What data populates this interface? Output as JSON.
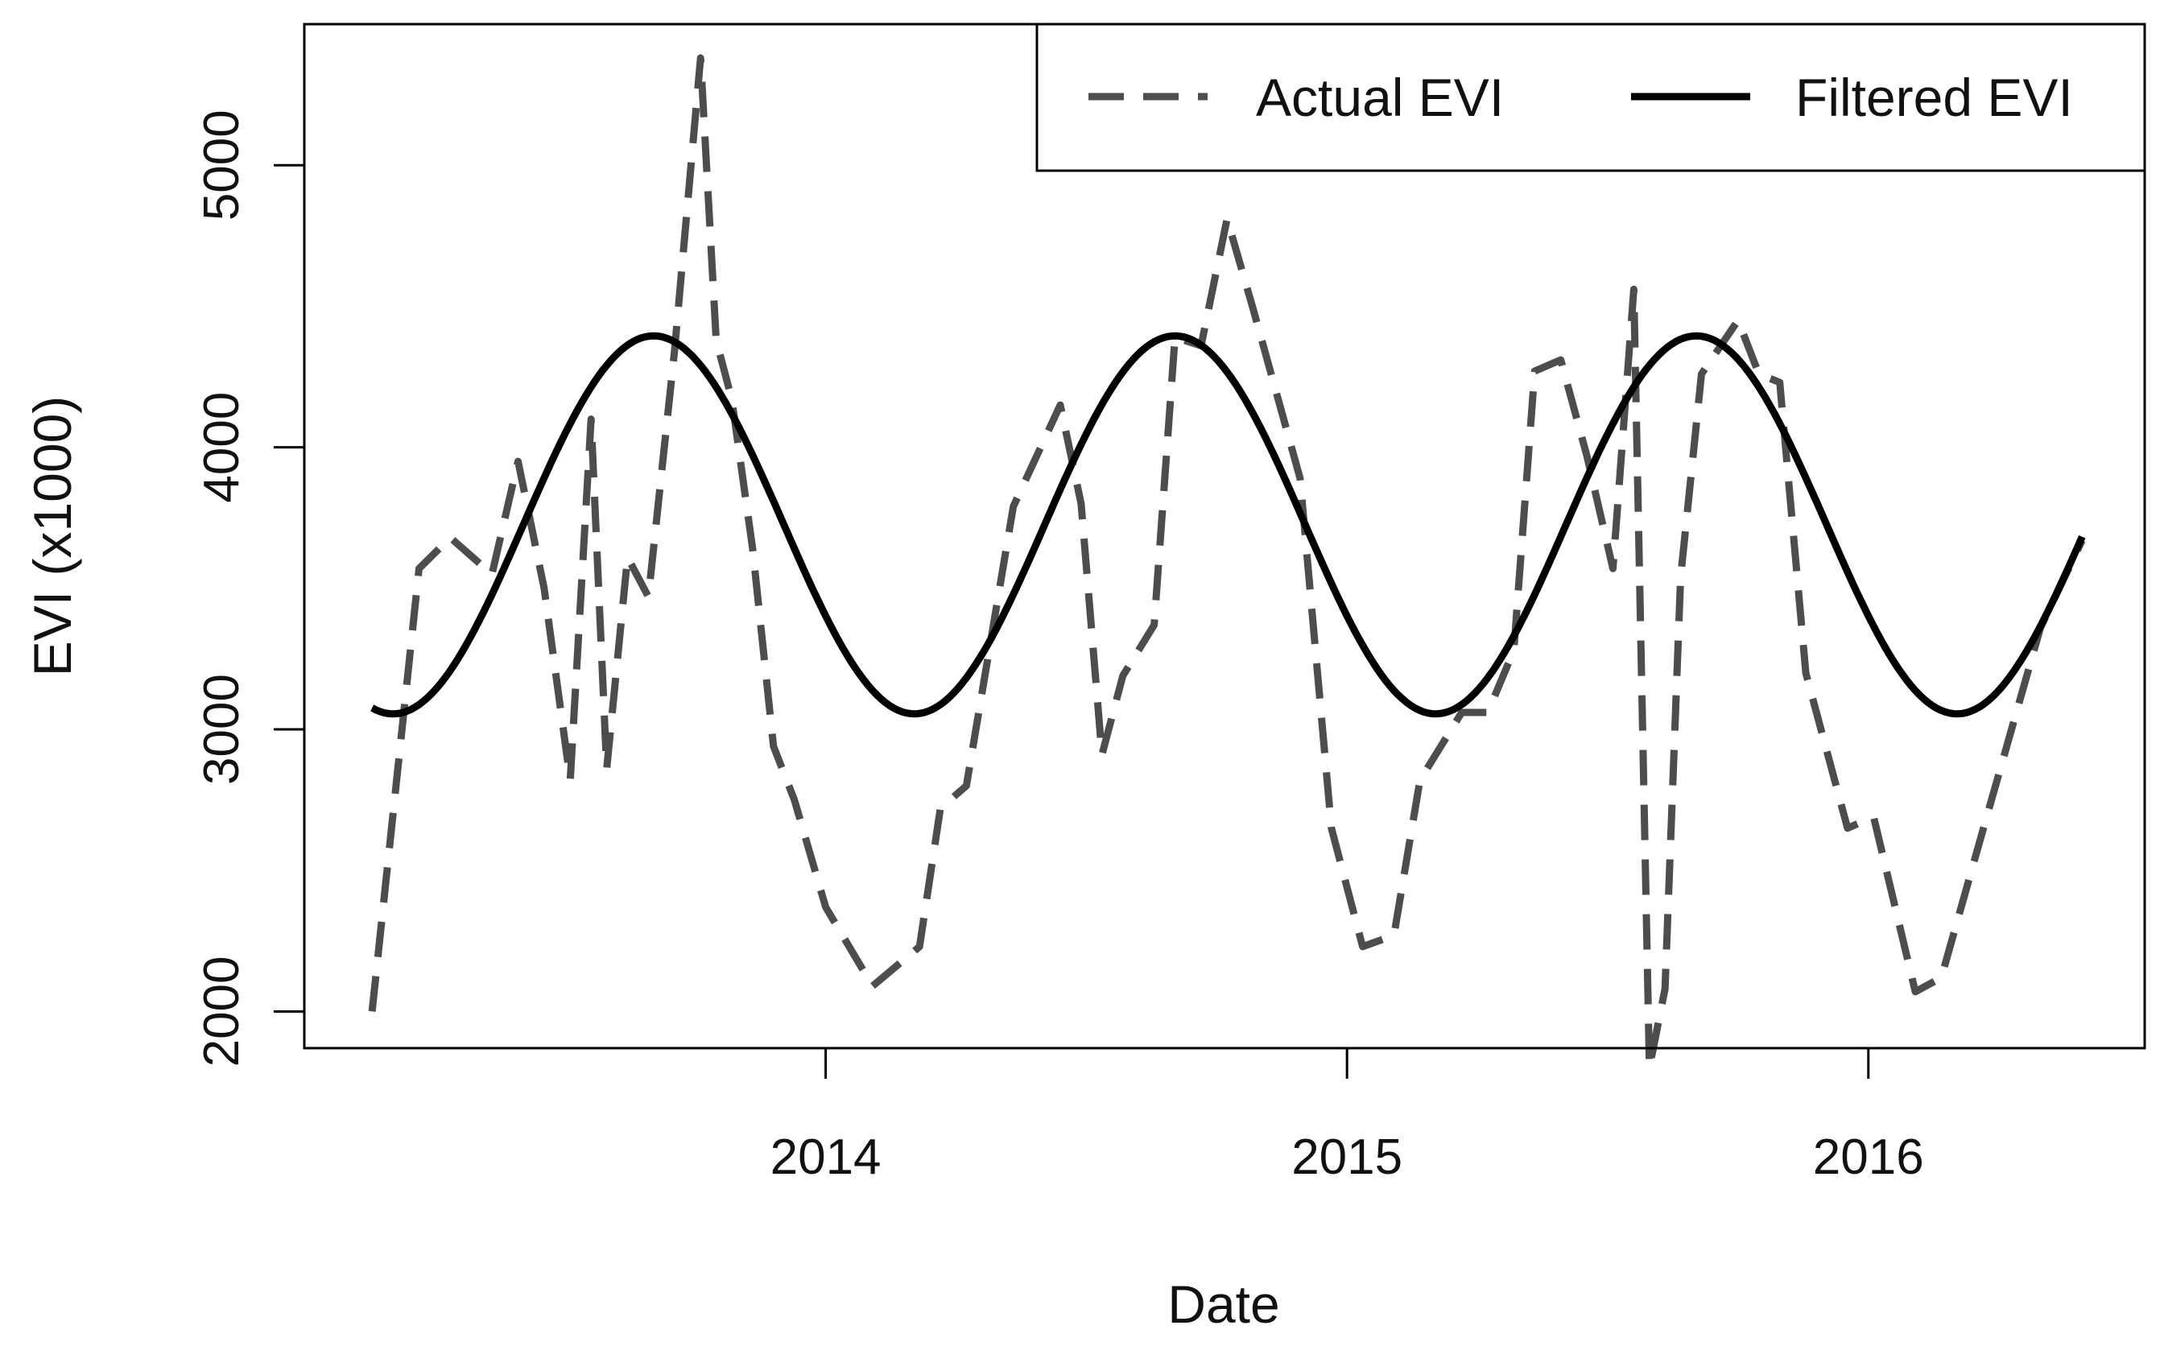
{
  "chart_data": {
    "type": "line",
    "title": "",
    "xlabel": "Date",
    "ylabel": "EVI (x1000)",
    "xlim": [
      2013.0,
      2016.53
    ],
    "ylim": [
      1870,
      5500
    ],
    "x_ticks": [
      {
        "value": 2014,
        "label": "2014"
      },
      {
        "value": 2015,
        "label": "2015"
      },
      {
        "value": 2016,
        "label": "2016"
      }
    ],
    "y_ticks": [
      {
        "value": 2000,
        "label": "2000"
      },
      {
        "value": 3000,
        "label": "3000"
      },
      {
        "value": 4000,
        "label": "4000"
      },
      {
        "value": 5000,
        "label": "5000"
      }
    ],
    "legend": {
      "position": "top-right",
      "entries": [
        {
          "label": "Actual EVI",
          "style": "dashed"
        },
        {
          "label": "Filtered EVI",
          "style": "solid"
        }
      ]
    },
    "colors": {
      "actual": "#4d4d4d",
      "filtered": "#000000",
      "axes": "#000000"
    },
    "series": [
      {
        "name": "Actual EVI",
        "style": "dashed",
        "x": [
          2013.13,
          2013.22,
          2013.28,
          2013.36,
          2013.41,
          2013.46,
          2013.51,
          2013.55,
          2013.58,
          2013.62,
          2013.66,
          2013.71,
          2013.76,
          2013.79,
          2013.82,
          2013.86,
          2013.9,
          2013.94,
          2014.0,
          2014.09,
          2014.18,
          2014.22,
          2014.27,
          2014.36,
          2014.45,
          2014.49,
          2014.53,
          2014.57,
          2014.63,
          2014.67,
          2014.72,
          2014.77,
          2014.82,
          2014.91,
          2014.97,
          2015.03,
          2015.09,
          2015.14,
          2015.22,
          2015.27,
          2015.32,
          2015.36,
          2015.41,
          2015.46,
          2015.51,
          2015.55,
          2015.58,
          2015.61,
          2015.64,
          2015.68,
          2015.75,
          2015.79,
          2015.83,
          2015.88,
          2015.96,
          2016.01,
          2016.09,
          2016.14,
          2016.23,
          2016.33,
          2016.41
        ],
        "values": [
          2000,
          3570,
          3680,
          3550,
          3950,
          3500,
          2820,
          4100,
          2860,
          3610,
          3470,
          4340,
          5380,
          4380,
          4170,
          3640,
          2940,
          2750,
          2370,
          2090,
          2230,
          2720,
          2800,
          3790,
          4150,
          3800,
          2910,
          3190,
          3370,
          4390,
          4360,
          4810,
          4490,
          3890,
          2650,
          2230,
          2270,
          2820,
          3060,
          3060,
          3280,
          4270,
          4310,
          3970,
          3570,
          4560,
          1800,
          2080,
          3540,
          4260,
          4450,
          4260,
          4230,
          3200,
          2650,
          2690,
          2070,
          2120,
          2710,
          3360,
          3670
        ]
      },
      {
        "name": "Filtered EVI",
        "style": "solid",
        "base": 3725,
        "amplitude": 670,
        "peak_x": 2013.67,
        "period_years": 1.0,
        "x_start": 2013.13,
        "x_end": 2016.41
      }
    ]
  }
}
